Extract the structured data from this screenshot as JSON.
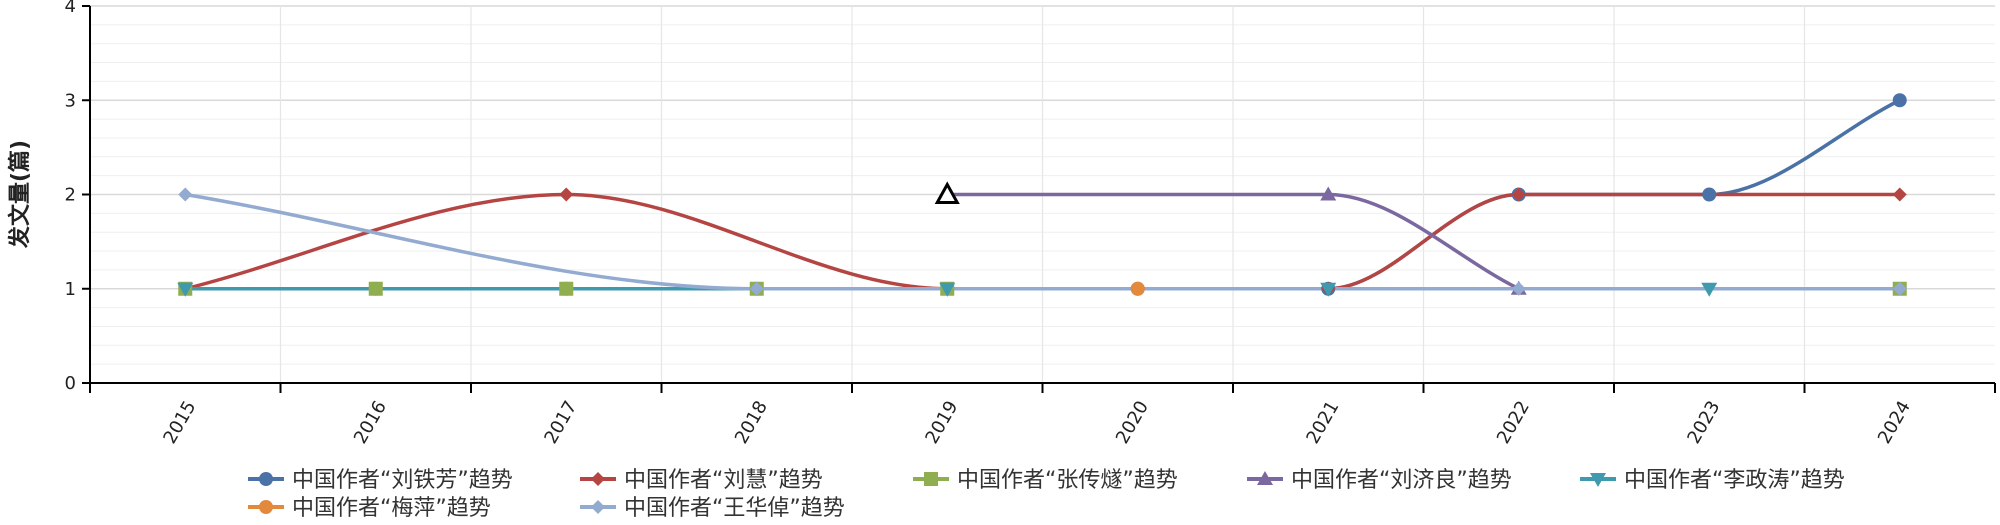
{
  "chart_data": {
    "type": "line",
    "title": "",
    "xlabel": "",
    "ylabel": "发文量(篇)",
    "ylim": [
      0,
      4
    ],
    "yticks": [
      0,
      1,
      2,
      3,
      4
    ],
    "grid": true,
    "smooth": true,
    "legend_position": "bottom",
    "categories": [
      "2015",
      "2016",
      "2017",
      "2018",
      "2019",
      "2020",
      "2021",
      "2022",
      "2023",
      "2024"
    ],
    "series": [
      {
        "name": "中国作者“刘铁芳”趋势",
        "color": "#4a72a6",
        "marker": "circle",
        "values": [
          null,
          null,
          null,
          null,
          null,
          1,
          1,
          2,
          2,
          3
        ]
      },
      {
        "name": "中国作者“刘慧”趋势",
        "color": "#b44542",
        "marker": "diamond",
        "values": [
          1,
          null,
          2,
          null,
          1,
          null,
          1,
          2,
          null,
          2
        ]
      },
      {
        "name": "中国作者“张传燧”趋势",
        "color": "#8fae4f",
        "marker": "square",
        "values": [
          1,
          1,
          1,
          1,
          1,
          null,
          null,
          null,
          null,
          1
        ]
      },
      {
        "name": "中国作者“刘济良”趋势",
        "color": "#7c68a0",
        "marker": "triangle",
        "values": [
          null,
          null,
          null,
          null,
          2,
          null,
          2,
          1,
          null,
          null
        ]
      },
      {
        "name": "中国作者“李政涛”趋势",
        "color": "#3f9aae",
        "marker": "triangle-down",
        "values": [
          1,
          null,
          null,
          null,
          1,
          null,
          1,
          null,
          1,
          null
        ]
      },
      {
        "name": "中国作者“梅萍”趋势",
        "color": "#e3893b",
        "marker": "circle",
        "values": [
          null,
          1,
          1,
          1,
          null,
          1,
          null,
          null,
          null,
          null
        ]
      },
      {
        "name": "中国作者“王华倬”趋势",
        "color": "#93aad1",
        "marker": "diamond",
        "values": [
          2,
          null,
          null,
          1,
          null,
          null,
          null,
          1,
          null,
          1
        ]
      }
    ],
    "highlight_marker": {
      "x": "2019",
      "y": 2,
      "marker": "triangle-outline",
      "color": "#000000"
    }
  }
}
